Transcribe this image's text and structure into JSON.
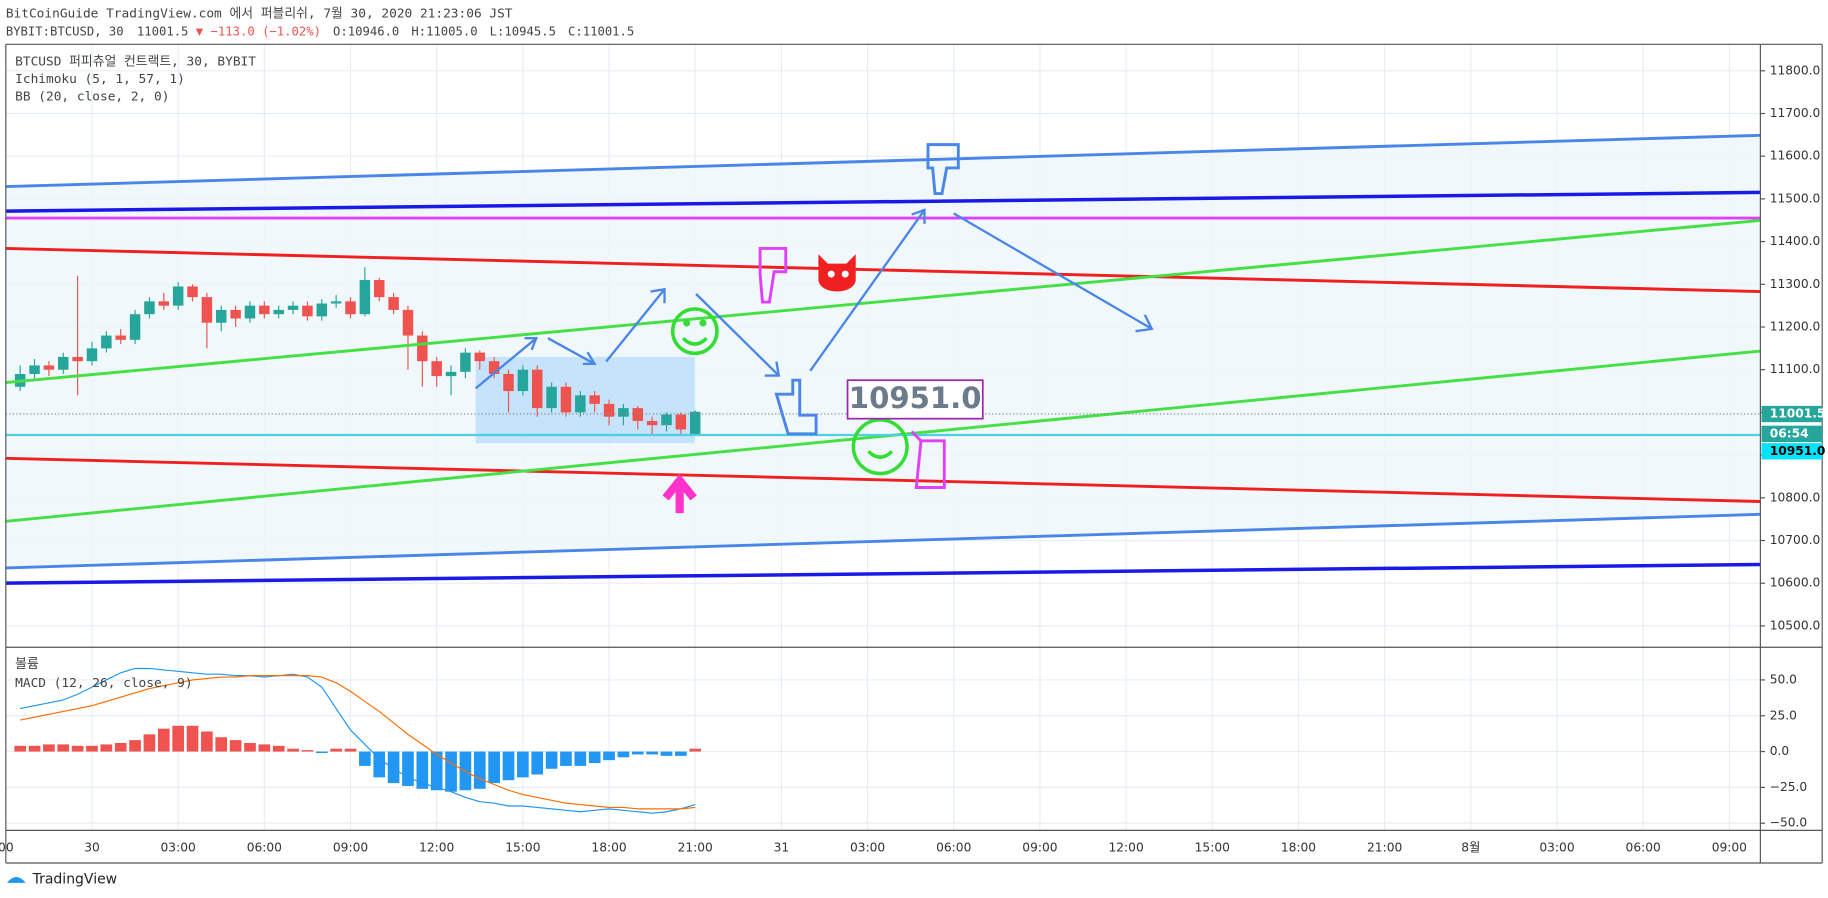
{
  "header": {
    "publisher": "BitCoinGuide TradingView.com 에서 퍼블리쉬, 7월 30, 2020 21:23:06 JST",
    "symbol": "BYBIT:BTCUSD, 30",
    "last": "11001.5",
    "change": "▼ −113.0 (−1.02%)",
    "open": "O:10946.0",
    "high": "H:11005.0",
    "low": "L:10945.5",
    "close": "C:11001.5"
  },
  "chart_data": [
    {
      "type": "candlestick",
      "title": "BTCUSD 퍼피츄얼 컨트랙트, 30, BYBIT",
      "indicators": [
        "Ichimoku (5, 1, 57, 1)",
        "BB (20, close, 2, 0)"
      ],
      "up_color": "#26a69a",
      "down_color": "#ef5350",
      "open": [
        11060,
        11090,
        11110,
        11100,
        11130,
        11120,
        11150,
        11180,
        11170,
        11230,
        11260,
        11250,
        11295,
        11270,
        11210,
        11240,
        11220,
        11250,
        11230,
        11240,
        11250,
        11225,
        11255,
        11260,
        11230,
        11310,
        11270,
        11240,
        11180,
        11120,
        11085,
        11095,
        11140,
        11120,
        11090,
        11050,
        11100,
        11010,
        11060,
        11000,
        11040,
        11020,
        10990,
        11010,
        10980,
        10970,
        10995,
        10946.0
      ],
      "high": [
        11110,
        11125,
        11120,
        11140,
        11320,
        11165,
        11190,
        11195,
        11240,
        11270,
        11280,
        11305,
        11300,
        11280,
        11250,
        11250,
        11260,
        11260,
        11250,
        11260,
        11260,
        11265,
        11275,
        11270,
        11340,
        11315,
        11280,
        11250,
        11190,
        11130,
        11110,
        11150,
        11145,
        11130,
        11100,
        11110,
        11110,
        11070,
        11070,
        11050,
        11050,
        11030,
        11020,
        11015,
        10990,
        11000,
        11000,
        11005.0
      ],
      "low": [
        11050,
        11080,
        11085,
        11090,
        11040,
        11110,
        11140,
        11160,
        11160,
        11220,
        11240,
        11240,
        11260,
        11150,
        11190,
        11200,
        11210,
        11220,
        11220,
        11230,
        11215,
        11215,
        11245,
        11220,
        11225,
        11260,
        11230,
        11100,
        11060,
        11060,
        11040,
        11080,
        11100,
        11080,
        11000,
        11040,
        10990,
        11000,
        10990,
        10990,
        11000,
        10970,
        10970,
        10960,
        10945,
        10955,
        10945,
        10945.5
      ],
      "close": [
        11090,
        11110,
        11100,
        11130,
        11120,
        11150,
        11180,
        11170,
        11230,
        11260,
        11250,
        11295,
        11270,
        11210,
        11240,
        11220,
        11250,
        11230,
        11240,
        11250,
        11225,
        11255,
        11260,
        11230,
        11310,
        11270,
        11240,
        11180,
        11120,
        11085,
        11095,
        11140,
        11120,
        11090,
        11050,
        11100,
        11010,
        11060,
        11000,
        11040,
        11020,
        10990,
        11010,
        10980,
        10970,
        10995,
        10960,
        11001.5
      ],
      "ylim": [
        10450,
        11862
      ],
      "yticks": [
        {
          "value": 11800,
          "label": "11800.0"
        },
        {
          "value": 11700,
          "label": "11700.0"
        },
        {
          "value": 11600,
          "label": "11600.0"
        },
        {
          "value": 11500,
          "label": "11500.0"
        },
        {
          "value": 11400,
          "label": "11400.0"
        },
        {
          "value": 11300,
          "label": "11300.0"
        },
        {
          "value": 11200,
          "label": "11200.0"
        },
        {
          "value": 11100,
          "label": "11100.0"
        },
        {
          "value": 11000,
          "label": "11000.0"
        },
        {
          "value": 10900,
          "label": "10900.0"
        },
        {
          "value": 10800,
          "label": "10800.0"
        },
        {
          "value": 10700,
          "label": "10700.0"
        },
        {
          "value": 10600,
          "label": "10600.0"
        },
        {
          "value": 10500,
          "label": "10500.0"
        }
      ],
      "xticks": [
        {
          "value": -1,
          "label": "00"
        },
        {
          "value": 5,
          "label": "30"
        },
        {
          "value": 11,
          "label": "03:00"
        },
        {
          "value": 17,
          "label": "06:00"
        },
        {
          "value": 23,
          "label": "09:00"
        },
        {
          "value": 29,
          "label": "12:00"
        },
        {
          "value": 35,
          "label": "15:00"
        },
        {
          "value": 41,
          "label": "18:00"
        },
        {
          "value": 47,
          "label": "21:00"
        },
        {
          "value": 53,
          "label": "31"
        },
        {
          "value": 59,
          "label": "03:00"
        },
        {
          "value": 65,
          "label": "06:00"
        },
        {
          "value": 71,
          "label": "09:00"
        },
        {
          "value": 77,
          "label": "12:00"
        },
        {
          "value": 83,
          "label": "15:00"
        },
        {
          "value": 89,
          "label": "18:00"
        },
        {
          "value": 95,
          "label": "21:00"
        },
        {
          "value": 101,
          "label": "8월"
        },
        {
          "value": 107,
          "label": "03:00"
        },
        {
          "value": 113,
          "label": "06:00"
        },
        {
          "value": 119,
          "label": "09:00"
        }
      ],
      "last_price_label": "11001.5",
      "countdown": "06:54",
      "line_price_label": "10951.0",
      "annotation": "10951.0"
    },
    {
      "type": "macd",
      "title": "MACD (12, 26, close, 9)",
      "volume_title": "볼륨",
      "series": [
        {
          "name": "Histogram",
          "color": "#ef5350",
          "negative_color": "#2196f3",
          "values": [
            4,
            4,
            5,
            5,
            4,
            4,
            5,
            6,
            8,
            12,
            16,
            18,
            18,
            14,
            10,
            8,
            6,
            5,
            4,
            2,
            1,
            -1,
            2,
            2,
            -10,
            -18,
            -22,
            -24,
            -26,
            -27,
            -28,
            -27,
            -26,
            -22,
            -20,
            -18,
            -16,
            -12,
            -10,
            -10,
            -8,
            -6,
            -4,
            -2,
            -2,
            -3,
            -3,
            2
          ]
        },
        {
          "name": "MACD",
          "color": "#2196f3",
          "values": [
            30,
            32,
            34,
            36,
            40,
            45,
            50,
            55,
            58,
            58,
            57,
            56,
            55,
            54,
            54,
            53,
            53,
            52,
            53,
            54,
            52,
            45,
            30,
            15,
            5,
            -5,
            -12,
            -18,
            -22,
            -25,
            -28,
            -32,
            -35,
            -36,
            -38,
            -38,
            -39,
            -40,
            -41,
            -42,
            -41,
            -40,
            -41,
            -42,
            -43,
            -42,
            -40,
            -37
          ]
        },
        {
          "name": "Signal",
          "color": "#ff6d00",
          "values": [
            22,
            24,
            26,
            28,
            30,
            32,
            35,
            38,
            41,
            44,
            46,
            48,
            50,
            51,
            52,
            52,
            53,
            53,
            53,
            53,
            53,
            52,
            48,
            42,
            35,
            28,
            20,
            12,
            5,
            -2,
            -8,
            -14,
            -19,
            -23,
            -27,
            -30,
            -32,
            -34,
            -36,
            -37,
            -38,
            -39,
            -39,
            -40,
            -40,
            -40,
            -40,
            -39
          ]
        }
      ],
      "ylim": [
        -55,
        72
      ],
      "yticks": [
        {
          "value": 50,
          "label": "50.0"
        },
        {
          "value": 25,
          "label": "25.0"
        },
        {
          "value": 0,
          "label": "0.0"
        },
        {
          "value": -25,
          "label": "−25.0"
        },
        {
          "value": -50,
          "label": "−50.0"
        }
      ]
    }
  ],
  "footer": "TradingView"
}
